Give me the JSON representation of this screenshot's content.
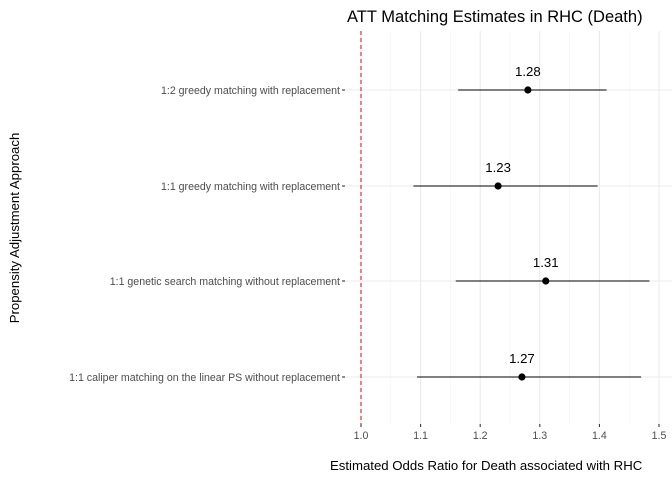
{
  "chart_data": {
    "type": "scatter",
    "subtype": "forest-plot",
    "title": "ATT Matching Estimates in RHC (Death)",
    "xlabel": "Estimated Odds Ratio for Death associated with RHC",
    "ylabel": "Propensity Adjustment Approach",
    "xlim": [
      0.97,
      1.505
    ],
    "x_ticks": [
      1.0,
      1.1,
      1.2,
      1.3,
      1.4,
      1.5
    ],
    "x_tick_labels": [
      "1.0",
      "1.1",
      "1.2",
      "1.3",
      "1.4",
      "1.5"
    ],
    "grid": true,
    "reference_line": {
      "x": 1.0,
      "color": "#d7191c",
      "style": "dashed"
    },
    "categories": [
      "1:2 greedy matching with replacement",
      "1:1 greedy matching with replacement",
      "1:1 genetic search matching without replacement",
      "1:1 caliper matching on the linear PS without replacement"
    ],
    "estimates": [
      1.28,
      1.23,
      1.31,
      1.27
    ],
    "estimate_labels": [
      "1.28",
      "1.23",
      "1.31",
      "1.27"
    ],
    "ci_lower": [
      1.163,
      1.088,
      1.159,
      1.094
    ],
    "ci_upper": [
      1.412,
      1.397,
      1.484,
      1.47
    ]
  }
}
